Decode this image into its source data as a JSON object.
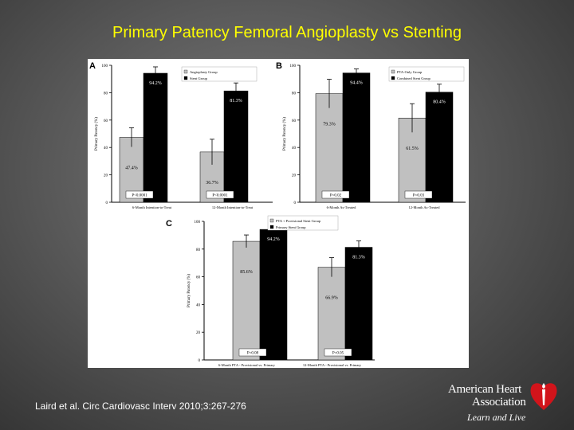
{
  "slide": {
    "title": "Primary Patency Femoral Angioplasty vs Stenting",
    "citation": "Laird et al. Circ Cardiovasc Interv 2010;3:267-276"
  },
  "logo": {
    "line1": "American Heart",
    "line2": "Association",
    "tagline": "Learn and Live",
    "mark": "heart-torch-logo"
  },
  "colors": {
    "series_light": "#c0c0c0",
    "series_dark": "#000000",
    "title": "#ffff00"
  },
  "chart_data": [
    {
      "type": "bar",
      "panel_label": "A",
      "ylabel": "Primary Patency (%)",
      "ylim": [
        0,
        100
      ],
      "yticks": [
        "0",
        "20",
        "40",
        "60",
        "80",
        "100"
      ],
      "categories": [
        "6-Month Intention-to-Treat",
        "12-Month Intention-to-Treat"
      ],
      "series": [
        {
          "name": "Angioplasty Group",
          "values": [
            47.4,
            36.7
          ],
          "labels": [
            "47.4%",
            "36.7%"
          ]
        },
        {
          "name": "Stent Group",
          "values": [
            94.2,
            81.3
          ],
          "labels": [
            "94.2%",
            "81.3%"
          ]
        }
      ],
      "p_values": [
        "P<0.0001",
        "P<0.0001"
      ],
      "legend": "top-right"
    },
    {
      "type": "bar",
      "panel_label": "B",
      "ylabel": "Primary Patency (%)",
      "ylim": [
        0,
        100
      ],
      "yticks": [
        "0",
        "20",
        "40",
        "60",
        "80",
        "100"
      ],
      "categories": [
        "6-Month As-Treated",
        "12-Month As-Treated"
      ],
      "series": [
        {
          "name": "PTA-Only Group",
          "values": [
            79.3,
            61.5
          ],
          "labels": [
            "79.3%",
            "61.5%"
          ]
        },
        {
          "name": "Combined Stent Group",
          "values": [
            94.4,
            80.4
          ],
          "labels": [
            "94.4%",
            "80.4%"
          ]
        }
      ],
      "p_values": [
        "P=0.02",
        "P=0.03"
      ],
      "legend": "top-right"
    },
    {
      "type": "bar",
      "panel_label": "C",
      "ylabel": "Primary Patency (%)",
      "ylim": [
        0,
        100
      ],
      "yticks": [
        "0",
        "20",
        "40",
        "60",
        "80",
        "100"
      ],
      "categories": [
        "6-Month PTA - Provisional vs. Primary",
        "12-Month PTA - Provisional vs. Primary"
      ],
      "series": [
        {
          "name": "PTA + Provisional Stent Group",
          "values": [
            85.6,
            66.9
          ],
          "labels": [
            "85.6%",
            "66.9%"
          ]
        },
        {
          "name": "Primary Stent Group",
          "values": [
            94.2,
            81.3
          ],
          "labels": [
            "94.2%",
            "81.3%"
          ]
        }
      ],
      "p_values": [
        "P=0.08",
        "P=0.05"
      ],
      "legend": "top-center"
    }
  ]
}
